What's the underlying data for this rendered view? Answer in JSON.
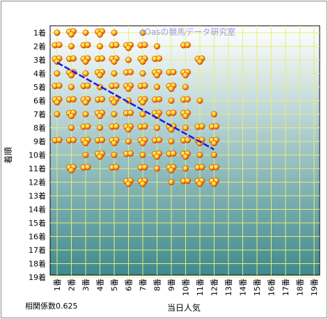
{
  "chart_data": {
    "type": "scatter",
    "title": "",
    "watermark": "eOasの競馬データ研究室",
    "xlabel": "当日人気",
    "ylabel": "着順",
    "footnote": "相関係数0.625",
    "x_ticks": [
      "1番",
      "2番",
      "3番",
      "4番",
      "5番",
      "6番",
      "7番",
      "8番",
      "9番",
      "10番",
      "11番",
      "12番",
      "13番",
      "14番",
      "15番",
      "16番",
      "17番",
      "18番",
      "19番"
    ],
    "y_ticks": [
      "1着",
      "2着",
      "3着",
      "4着",
      "5着",
      "6着",
      "7着",
      "8着",
      "9着",
      "10着",
      "11着",
      "12着",
      "13着",
      "14着",
      "15着",
      "16着",
      "17着",
      "18着",
      "19着"
    ],
    "xlim": [
      1,
      19
    ],
    "ylim": [
      1,
      19
    ],
    "grid": true,
    "colors": {
      "plot_bg_top": "#ffffff",
      "plot_bg_bottom": "#3f8a8d",
      "grid": "#e8ec78",
      "point_outer": "#d63a10",
      "point_inner": "#ffd21e",
      "trend": "#1a1adf"
    },
    "trend_line": {
      "x": [
        1,
        12
      ],
      "y": [
        3.2,
        9.6
      ]
    },
    "points": [
      [
        1,
        1
      ],
      [
        1,
        2
      ],
      [
        1,
        3
      ],
      [
        1,
        4
      ],
      [
        1,
        5
      ],
      [
        1,
        6
      ],
      [
        1,
        7
      ],
      [
        1,
        9
      ],
      [
        2,
        1
      ],
      [
        2,
        2
      ],
      [
        2,
        3
      ],
      [
        2,
        4
      ],
      [
        2,
        5
      ],
      [
        2,
        6
      ],
      [
        2,
        7
      ],
      [
        2,
        8
      ],
      [
        2,
        9
      ],
      [
        2,
        11
      ],
      [
        3,
        1
      ],
      [
        3,
        2
      ],
      [
        3,
        3
      ],
      [
        3,
        4
      ],
      [
        3,
        5
      ],
      [
        3,
        6
      ],
      [
        3,
        7
      ],
      [
        3,
        8
      ],
      [
        3,
        9
      ],
      [
        3,
        10
      ],
      [
        3,
        11
      ],
      [
        4,
        1
      ],
      [
        4,
        2
      ],
      [
        4,
        3
      ],
      [
        4,
        4
      ],
      [
        4,
        5
      ],
      [
        4,
        6
      ],
      [
        4,
        7
      ],
      [
        4,
        8
      ],
      [
        4,
        9
      ],
      [
        4,
        10
      ],
      [
        5,
        1
      ],
      [
        5,
        2
      ],
      [
        5,
        3
      ],
      [
        5,
        4
      ],
      [
        5,
        5
      ],
      [
        5,
        6
      ],
      [
        5,
        7
      ],
      [
        5,
        8
      ],
      [
        5,
        9
      ],
      [
        5,
        10
      ],
      [
        5,
        11
      ],
      [
        6,
        2
      ],
      [
        6,
        3
      ],
      [
        6,
        4
      ],
      [
        6,
        5
      ],
      [
        6,
        6
      ],
      [
        6,
        7
      ],
      [
        6,
        8
      ],
      [
        6,
        9
      ],
      [
        6,
        10
      ],
      [
        6,
        12
      ],
      [
        7,
        1
      ],
      [
        7,
        2
      ],
      [
        7,
        3
      ],
      [
        7,
        4
      ],
      [
        7,
        5
      ],
      [
        7,
        6
      ],
      [
        7,
        7
      ],
      [
        7,
        8
      ],
      [
        7,
        9
      ],
      [
        7,
        10
      ],
      [
        7,
        11
      ],
      [
        7,
        12
      ],
      [
        8,
        2
      ],
      [
        8,
        3
      ],
      [
        8,
        4
      ],
      [
        8,
        5
      ],
      [
        8,
        6
      ],
      [
        8,
        7
      ],
      [
        8,
        8
      ],
      [
        8,
        9
      ],
      [
        8,
        10
      ],
      [
        8,
        11
      ],
      [
        9,
        4
      ],
      [
        9,
        5
      ],
      [
        9,
        6
      ],
      [
        9,
        7
      ],
      [
        9,
        8
      ],
      [
        9,
        9
      ],
      [
        9,
        10
      ],
      [
        9,
        11
      ],
      [
        9,
        12
      ],
      [
        10,
        2
      ],
      [
        10,
        4
      ],
      [
        10,
        5
      ],
      [
        10,
        6
      ],
      [
        10,
        7
      ],
      [
        10,
        8
      ],
      [
        10,
        9
      ],
      [
        10,
        10
      ],
      [
        10,
        11
      ],
      [
        10,
        12
      ],
      [
        11,
        3
      ],
      [
        11,
        6
      ],
      [
        11,
        8
      ],
      [
        11,
        9
      ],
      [
        11,
        10
      ],
      [
        11,
        11
      ],
      [
        11,
        12
      ],
      [
        12,
        7
      ],
      [
        12,
        8
      ],
      [
        12,
        9
      ],
      [
        12,
        10
      ],
      [
        12,
        11
      ],
      [
        12,
        12
      ]
    ]
  }
}
